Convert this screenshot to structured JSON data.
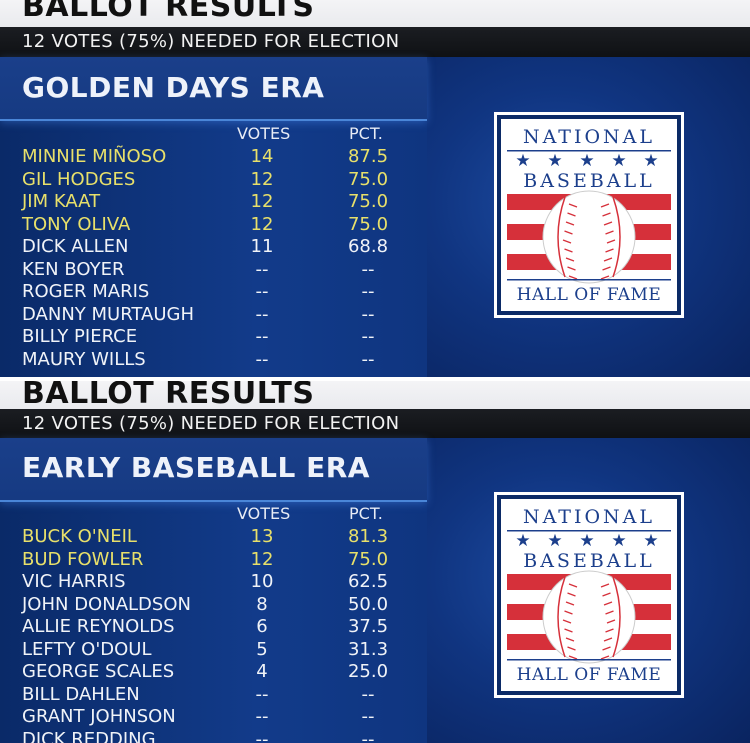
{
  "panels": [
    {
      "banner_title": "BALLOT RESULTS",
      "subtitle": "12 VOTES (75%) NEEDED FOR ELECTION",
      "era": "GOLDEN DAYS ERA",
      "votes_header": "VOTES",
      "pct_header": "PCT.",
      "rows": [
        {
          "name": "MINNIE MIÑOSO",
          "votes": "14",
          "pct": "87.5",
          "elected": true
        },
        {
          "name": "GIL HODGES",
          "votes": "12",
          "pct": "75.0",
          "elected": true
        },
        {
          "name": "JIM KAAT",
          "votes": "12",
          "pct": "75.0",
          "elected": true
        },
        {
          "name": "TONY OLIVA",
          "votes": "12",
          "pct": "75.0",
          "elected": true
        },
        {
          "name": "DICK ALLEN",
          "votes": "11",
          "pct": "68.8",
          "elected": false
        },
        {
          "name": "KEN BOYER",
          "votes": "--",
          "pct": "--",
          "elected": false
        },
        {
          "name": "ROGER MARIS",
          "votes": "--",
          "pct": "--",
          "elected": false
        },
        {
          "name": "DANNY MURTAUGH",
          "votes": "--",
          "pct": "--",
          "elected": false
        },
        {
          "name": "BILLY PIERCE",
          "votes": "--",
          "pct": "--",
          "elected": false
        },
        {
          "name": "MAURY WILLS",
          "votes": "--",
          "pct": "--",
          "elected": false
        }
      ],
      "logo": {
        "line1": "NATIONAL",
        "line2": "BASEBALL",
        "line3": "HALL OF FAME"
      }
    },
    {
      "banner_title": "BALLOT RESULTS",
      "subtitle": "12 VOTES (75%) NEEDED FOR ELECTION",
      "era": "EARLY BASEBALL ERA",
      "votes_header": "VOTES",
      "pct_header": "PCT.",
      "rows": [
        {
          "name": "BUCK O'NEIL",
          "votes": "13",
          "pct": "81.3",
          "elected": true
        },
        {
          "name": "BUD FOWLER",
          "votes": "12",
          "pct": "75.0",
          "elected": true
        },
        {
          "name": "VIC HARRIS",
          "votes": "10",
          "pct": "62.5",
          "elected": false
        },
        {
          "name": "JOHN DONALDSON",
          "votes": "8",
          "pct": "50.0",
          "elected": false
        },
        {
          "name": "ALLIE REYNOLDS",
          "votes": "6",
          "pct": "37.5",
          "elected": false
        },
        {
          "name": "LEFTY O'DOUL",
          "votes": "5",
          "pct": "31.3",
          "elected": false
        },
        {
          "name": "GEORGE SCALES",
          "votes": "4",
          "pct": "25.0",
          "elected": false
        },
        {
          "name": "BILL DAHLEN",
          "votes": "--",
          "pct": "--",
          "elected": false
        },
        {
          "name": "GRANT JOHNSON",
          "votes": "--",
          "pct": "--",
          "elected": false
        },
        {
          "name": "DICK REDDING",
          "votes": "--",
          "pct": "--",
          "elected": false
        }
      ],
      "logo": {
        "line1": "NATIONAL",
        "line2": "BASEBALL",
        "line3": "HALL OF FAME"
      }
    }
  ],
  "colors": {
    "elected_text": "#e8e06a",
    "normal_text": "#f0f3f8",
    "logo_red": "#d6303a",
    "logo_blue": "#1c3f8c"
  }
}
